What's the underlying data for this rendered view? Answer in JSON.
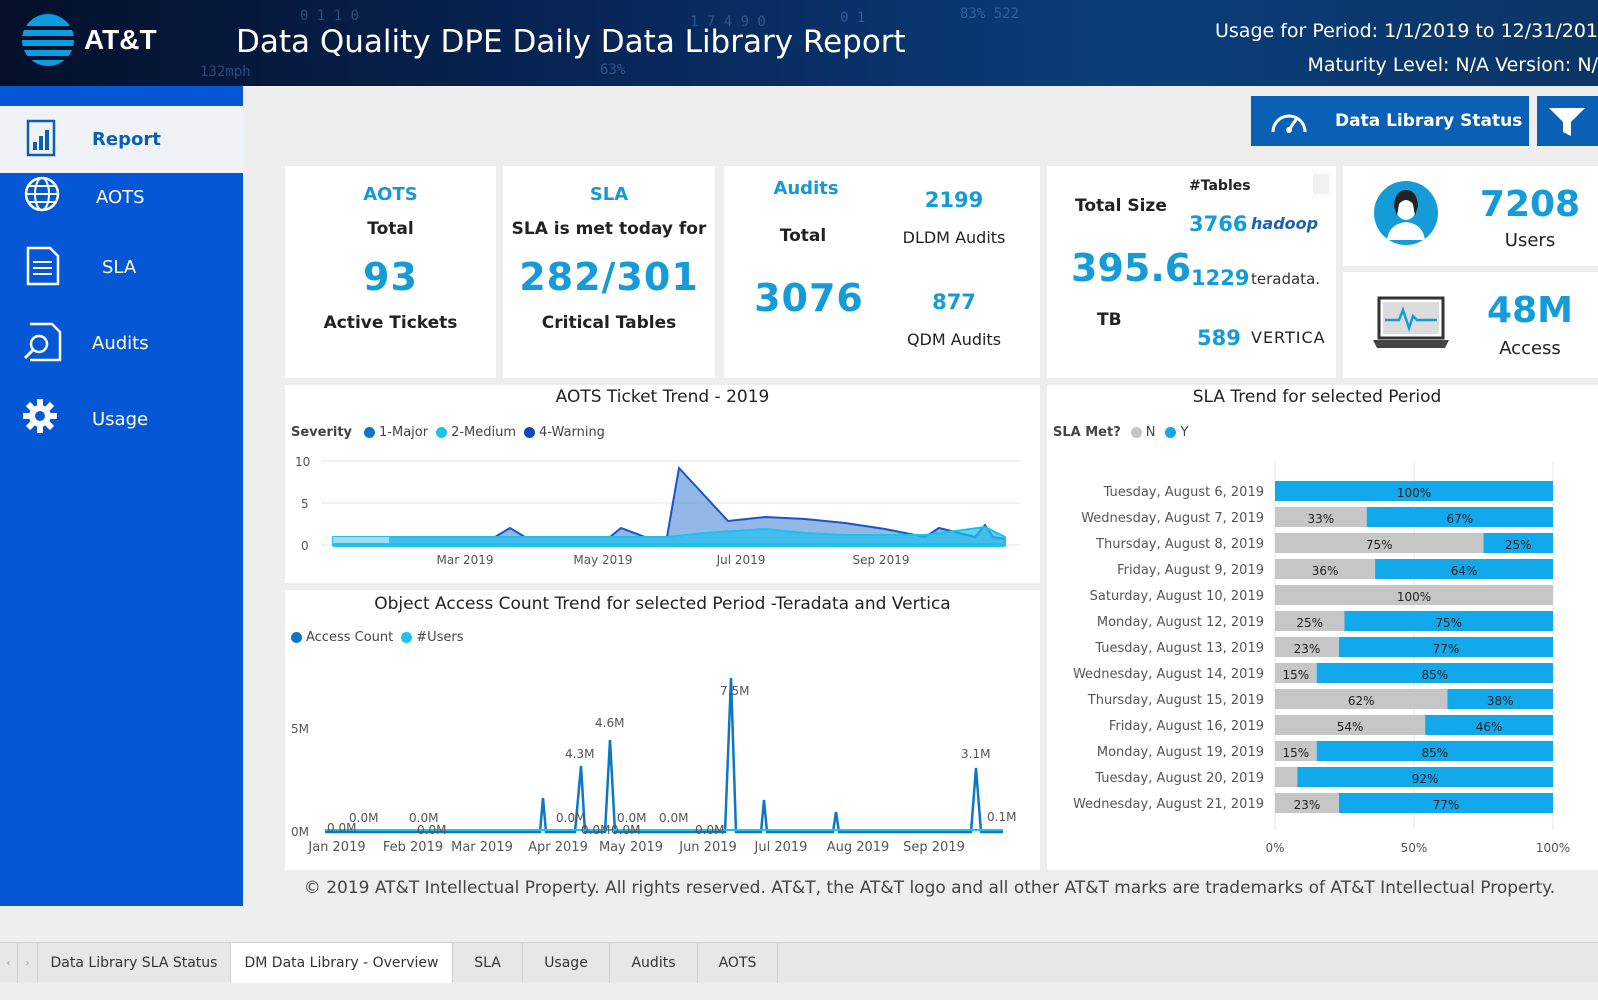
{
  "header": {
    "brand": "AT&T",
    "title": "Data Quality DPE Daily Data Library Report",
    "period": "Usage for Period: 1/1/2019 to 12/31/201",
    "maturity": "Maturity Level: N/A  Version: N/"
  },
  "sidebar": {
    "items": [
      {
        "label": "Report",
        "icon": "bar-chart-icon"
      },
      {
        "label": "AOTS",
        "icon": "globe-icon"
      },
      {
        "label": "SLA",
        "icon": "document-icon"
      },
      {
        "label": "Audits",
        "icon": "magnifier-document-icon"
      },
      {
        "label": "Usage",
        "icon": "gear-icon"
      }
    ]
  },
  "toolbar": {
    "status_button": "Data Library Status"
  },
  "cards": {
    "aots": {
      "title": "AOTS",
      "sub": "Total",
      "value": "93",
      "caption": "Active Tickets"
    },
    "sla": {
      "title": "SLA",
      "sub": "SLA is met today for",
      "value": "282/301",
      "caption": "Critical Tables"
    },
    "audits": {
      "title": "Audits",
      "sub": "Total",
      "value": "3076",
      "dldm_value": "2199",
      "dldm_label": "DLDM Audits",
      "qdm_value": "877",
      "qdm_label": "QDM Audits"
    },
    "size": {
      "label": "Total Size",
      "value": "395.6",
      "unit": "TB",
      "tables_label": "#Tables",
      "platforms": [
        {
          "count": "3766",
          "name": "hadoop"
        },
        {
          "count": "1229",
          "name": "teradata."
        },
        {
          "count": "589",
          "name": "VERTICA"
        }
      ]
    },
    "users": {
      "value": "7208",
      "label": "Users"
    },
    "access": {
      "value": "48M",
      "label": "Access"
    }
  },
  "aots_chart": {
    "title": "AOTS Ticket Trend - 2019",
    "legend_title": "Severity",
    "legend": [
      {
        "name": "1-Major",
        "color": "#0b77c5"
      },
      {
        "name": "2-Medium",
        "color": "#1ec0ee"
      },
      {
        "name": "4-Warning",
        "color": "#1248b7"
      }
    ],
    "y_ticks": [
      "10",
      "5",
      "0"
    ],
    "x_ticks": [
      "Mar 2019",
      "May 2019",
      "Jul 2019",
      "Sep 2019"
    ]
  },
  "access_chart": {
    "title": "Object Access Count Trend for selected Period -Teradata and Vertica",
    "legend": [
      {
        "name": "Access Count",
        "color": "#0b77c5"
      },
      {
        "name": "#Users",
        "color": "#1ec0ee"
      }
    ],
    "y_ticks": [
      "5M",
      "0M"
    ],
    "x_ticks": [
      "Jan 2019",
      "Feb 2019",
      "Mar 2019",
      "Apr 2019",
      "May 2019",
      "Jun 2019",
      "Jul 2019",
      "Aug 2019",
      "Sep 2019"
    ],
    "labels": [
      "0.0M",
      "0.0M",
      "0.0M",
      "0.0M",
      "4.3M",
      "4.6M",
      "0.0M",
      "0.0M",
      "0.0M",
      "0.0M",
      "0.0M",
      "0.0M",
      "7.5M",
      "3.1M",
      "0.1M"
    ]
  },
  "chart_data": {
    "type": "bar",
    "title": "SLA Trend for selected Period",
    "legend_title": "SLA Met?",
    "series": [
      {
        "name": "N",
        "color": "#c6c6c6",
        "values": [
          0,
          33,
          75,
          36,
          100,
          25,
          23,
          15,
          62,
          54,
          15,
          8,
          23
        ]
      },
      {
        "name": "Y",
        "color": "#12a9ec",
        "values": [
          100,
          67,
          25,
          64,
          0,
          75,
          77,
          85,
          38,
          46,
          85,
          92,
          77
        ]
      }
    ],
    "categories": [
      "Tuesday, August 6, 2019",
      "Wednesday, August 7, 2019",
      "Thursday, August 8, 2019",
      "Friday, August 9, 2019",
      "Saturday, August 10, 2019",
      "Monday, August 12, 2019",
      "Tuesday, August 13, 2019",
      "Wednesday, August 14, 2019",
      "Thursday, August 15, 2019",
      "Friday, August 16, 2019",
      "Monday, August 19, 2019",
      "Tuesday, August 20, 2019",
      "Wednesday, August 21, 2019"
    ],
    "x_ticks": [
      "0%",
      "50%",
      "100%"
    ],
    "xlim": [
      0,
      100
    ]
  },
  "footer": {
    "copyright": "© 2019 AT&T Intellectual Property. All rights reserved. AT&T, the AT&T logo and all other AT&T marks are trademarks of AT&T Intellectual Property."
  },
  "tabs": [
    "Data Library SLA Status",
    "DM Data Library - Overview",
    "SLA",
    "Usage",
    "Audits",
    "AOTS"
  ]
}
